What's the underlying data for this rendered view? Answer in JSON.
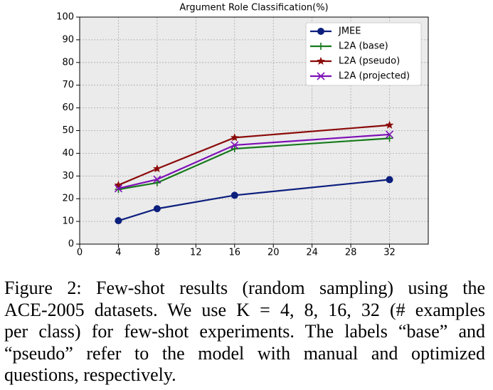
{
  "chart_data": {
    "type": "line",
    "title": "Argument Role Classification(%)",
    "x": [
      4,
      8,
      16,
      32
    ],
    "xlim": [
      0,
      36
    ],
    "xticks": [
      0,
      4,
      8,
      12,
      16,
      20,
      24,
      28,
      32
    ],
    "ylim": [
      0,
      100
    ],
    "yticks": [
      0,
      10,
      20,
      30,
      40,
      50,
      60,
      70,
      80,
      90,
      100
    ],
    "grid": true,
    "legend": "upper right",
    "series": [
      {
        "name": "JMEE",
        "color": "#0c1f7d",
        "marker": "circle",
        "values": [
          10.3,
          15.6,
          21.5,
          28.4
        ]
      },
      {
        "name": "L2A (base)",
        "color": "#177a1c",
        "marker": "plus",
        "values": [
          24.1,
          27.0,
          42.0,
          46.6
        ]
      },
      {
        "name": "L2A (pseudo)",
        "color": "#8b0a0a",
        "marker": "star",
        "values": [
          26.0,
          33.2,
          46.9,
          52.4
        ]
      },
      {
        "name": "L2A (projected)",
        "color": "#7d0fb5",
        "marker": "x",
        "values": [
          24.5,
          28.5,
          43.6,
          48.3
        ]
      }
    ]
  },
  "caption": {
    "lines": [
      "Figure 2: Few-shot results (random sampling) using the",
      "ACE-2005 datasets. We use K = 4, 8, 16, 32 (# examples",
      "per class) for few-shot experiments. The labels “base” and",
      "“pseudo” refer to the model with manual and optimized",
      "questions, respectively."
    ]
  }
}
